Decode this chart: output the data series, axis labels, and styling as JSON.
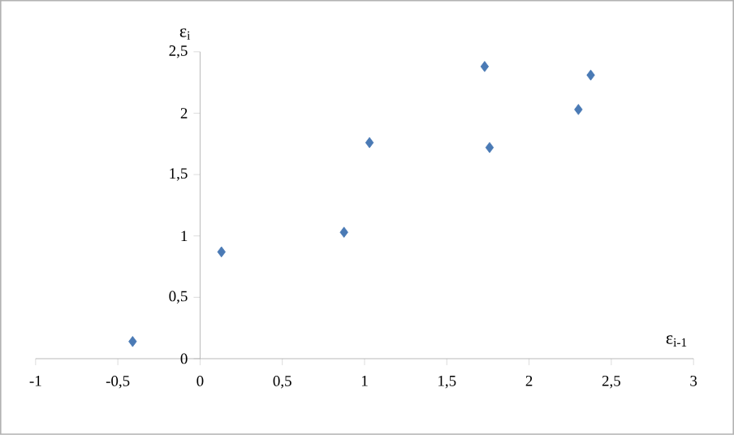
{
  "chart_data": {
    "type": "scatter",
    "xlabel": "ε$_{i-1}$",
    "ylabel": "ε$_{i}$",
    "x": [
      -0.41,
      0.13,
      0.875,
      1.03,
      1.73,
      1.76,
      2.3,
      2.375
    ],
    "series": [
      {
        "color": "#4a7ab5",
        "values": [
          0.14,
          0.87,
          1.03,
          1.76,
          2.38,
          1.72,
          2.03,
          2.31
        ]
      }
    ],
    "xlim": [
      -1,
      3
    ],
    "ylim": [
      0,
      2.5
    ],
    "xticks": [
      -1,
      {
        "value": -0.5,
        "label": "-0,5"
      },
      0,
      {
        "value": 0.5,
        "label": "0,5"
      },
      1,
      {
        "value": 1.5,
        "label": "1,5"
      },
      2,
      {
        "value": 2.5,
        "label": "2,5"
      },
      3
    ],
    "yticks": [
      0,
      {
        "value": 0.5,
        "label": "0,5"
      },
      1,
      {
        "value": 1.5,
        "label": "1,5"
      },
      2,
      {
        "value": 2.5,
        "label": "2,5"
      }
    ],
    "marker": "diamond",
    "grid": false
  }
}
